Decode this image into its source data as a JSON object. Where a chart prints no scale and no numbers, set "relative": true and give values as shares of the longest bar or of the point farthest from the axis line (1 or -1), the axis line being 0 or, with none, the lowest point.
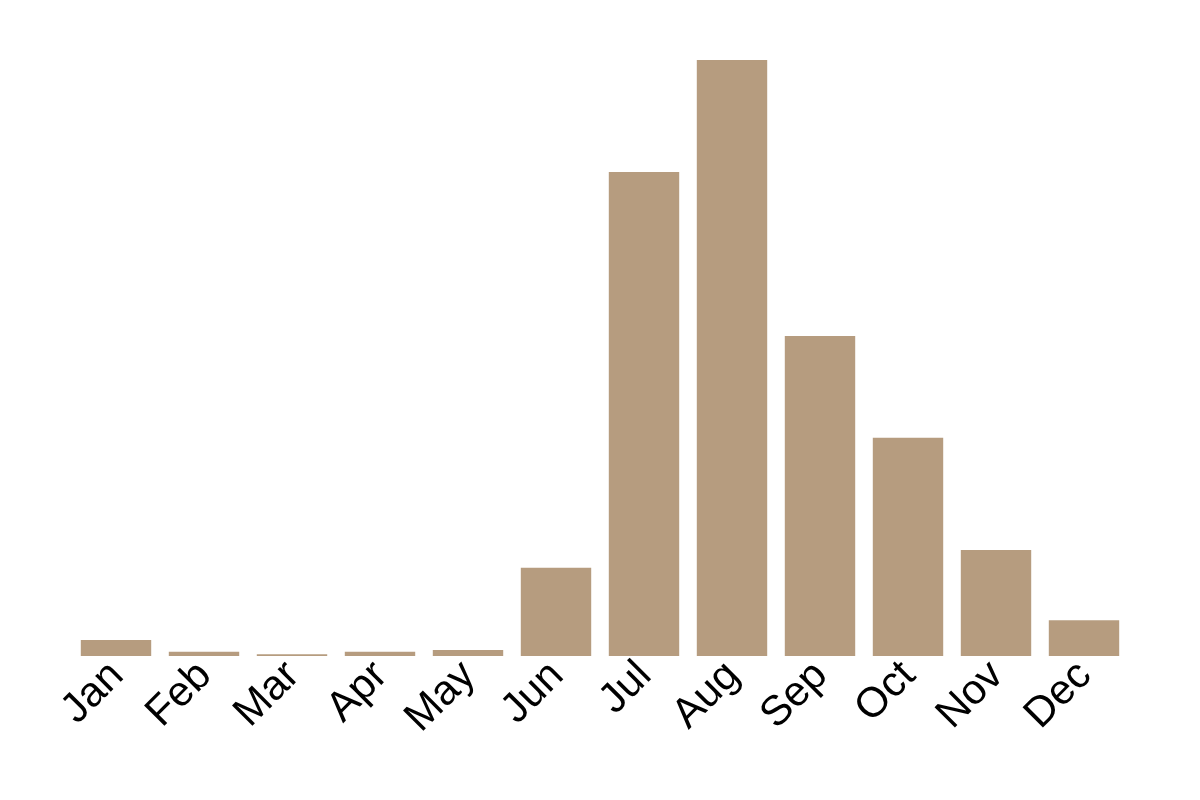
{
  "chart_data": {
    "type": "bar",
    "relative": true,
    "categories": [
      "Jan",
      "Feb",
      "Mar",
      "Apr",
      "May",
      "Jun",
      "Jul",
      "Aug",
      "Sep",
      "Oct",
      "Nov",
      "Dec"
    ],
    "values": [
      0.027,
      0.007,
      0.003,
      0.007,
      0.01,
      0.148,
      0.812,
      1,
      0.537,
      0.366,
      0.178,
      0.06
    ],
    "color": "#b69c7f"
  }
}
